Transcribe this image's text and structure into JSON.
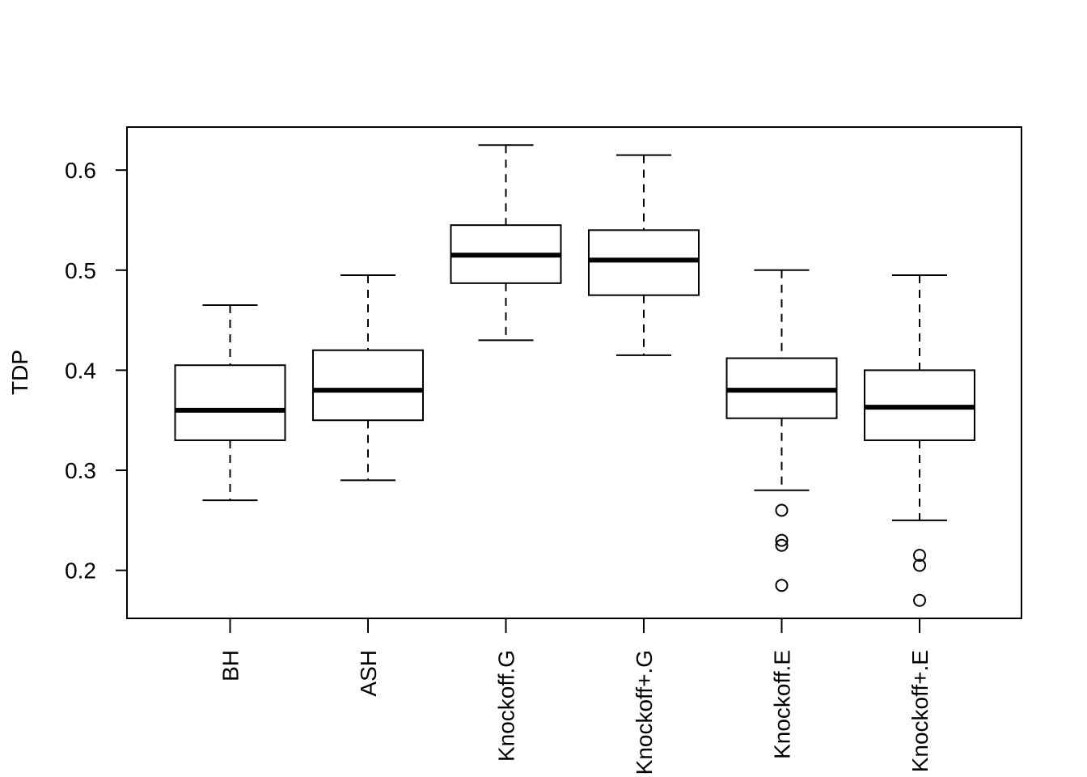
{
  "chart_data": {
    "type": "boxplot",
    "ylabel": "TDP",
    "xlabel": "",
    "ylim": [
      0.152,
      0.643
    ],
    "yticks": [
      0.2,
      0.3,
      0.4,
      0.5,
      0.6
    ],
    "ytick_labels": [
      "0.2",
      "0.3",
      "0.4",
      "0.5",
      "0.6"
    ],
    "grid": false,
    "categories": [
      "BH",
      "ASH",
      "Knockoff.G",
      "Knockoff+.G",
      "Knockoff.E",
      "Knockoff+.E"
    ],
    "boxes": [
      {
        "name": "BH",
        "whisker_low": 0.27,
        "q1": 0.33,
        "median": 0.36,
        "q3": 0.405,
        "whisker_high": 0.465,
        "outliers": []
      },
      {
        "name": "ASH",
        "whisker_low": 0.29,
        "q1": 0.35,
        "median": 0.38,
        "q3": 0.42,
        "whisker_high": 0.495,
        "outliers": []
      },
      {
        "name": "Knockoff.G",
        "whisker_low": 0.43,
        "q1": 0.487,
        "median": 0.515,
        "q3": 0.545,
        "whisker_high": 0.625,
        "outliers": []
      },
      {
        "name": "Knockoff+.G",
        "whisker_low": 0.415,
        "q1": 0.475,
        "median": 0.51,
        "q3": 0.54,
        "whisker_high": 0.615,
        "outliers": []
      },
      {
        "name": "Knockoff.E",
        "whisker_low": 0.28,
        "q1": 0.352,
        "median": 0.38,
        "q3": 0.412,
        "whisker_high": 0.5,
        "outliers": [
          0.26,
          0.23,
          0.225,
          0.185
        ]
      },
      {
        "name": "Knockoff+.E",
        "whisker_low": 0.25,
        "q1": 0.33,
        "median": 0.363,
        "q3": 0.4,
        "whisker_high": 0.495,
        "outliers": [
          0.215,
          0.205,
          0.17
        ]
      }
    ]
  }
}
